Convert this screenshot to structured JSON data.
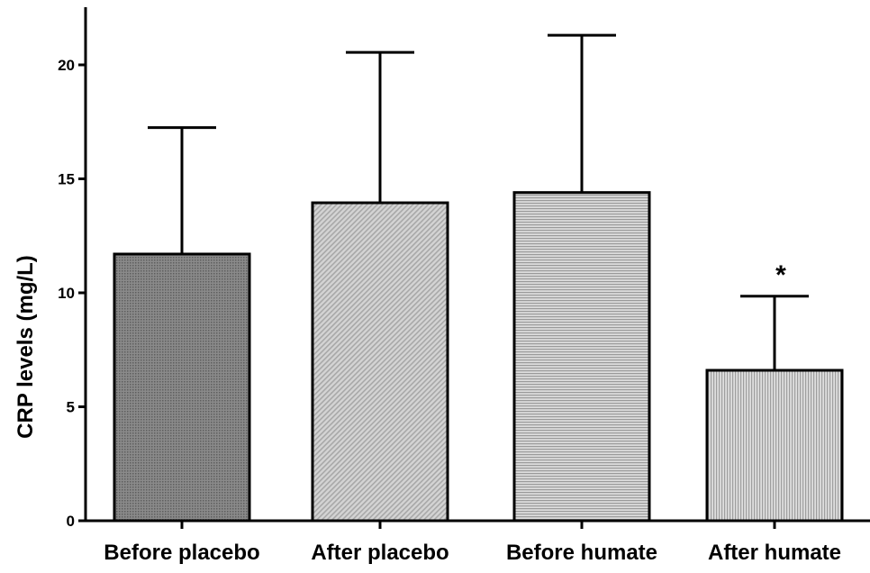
{
  "chart_data": {
    "type": "bar",
    "categories": [
      "Before placebo",
      "After placebo",
      "Before humate",
      "After humate"
    ],
    "values": [
      11.7,
      13.95,
      14.4,
      6.6
    ],
    "error_upper": [
      17.25,
      20.55,
      21.3,
      9.85
    ],
    "annotations": [
      "",
      "",
      "",
      "*"
    ],
    "ylabel": "CRP levels (mg/L)",
    "xlabel": "",
    "ylim": [
      0,
      22
    ],
    "yticks": [
      0,
      5,
      10,
      15,
      20
    ],
    "ytick_labels": [
      "0",
      "5",
      "10",
      "15",
      "20"
    ],
    "grid": false,
    "legend": "none",
    "bar_fills": [
      "#7a7a7a",
      "#c9c9c9",
      "#cfcfcf",
      "#d6d6d6"
    ],
    "bar_hatch": [
      "dots",
      "diagonal",
      "horizontal",
      "vertical"
    ]
  }
}
